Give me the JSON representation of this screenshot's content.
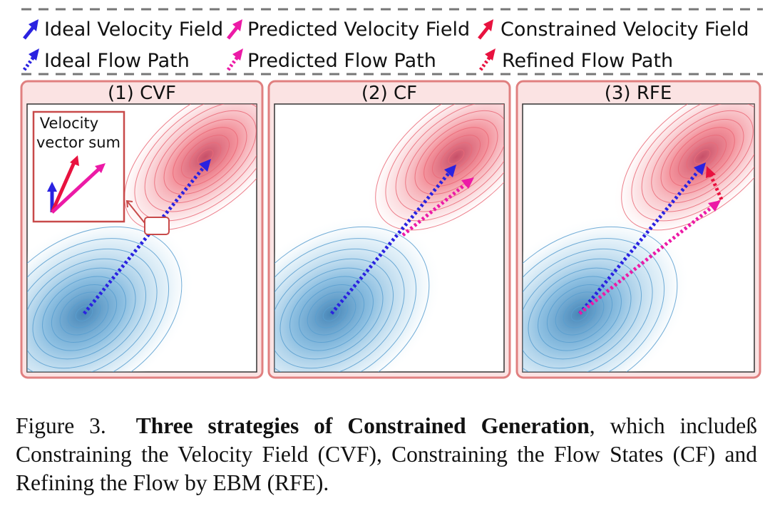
{
  "legend": {
    "row1": [
      "Ideal Velocity Field",
      "Predicted Velocity Field",
      "Constrained Velocity Field"
    ],
    "row2": [
      "Ideal Flow Path",
      "Predicted Flow Path",
      "Refined Flow Path"
    ]
  },
  "panels": [
    {
      "title": "(1) CVF"
    },
    {
      "title": "(2) CF"
    },
    {
      "title": "(3) RFE"
    }
  ],
  "inset": {
    "line1": "Velocity",
    "line2": "vector sum"
  },
  "caption": {
    "label": "Figure 3.",
    "bold": "Three strategies of Constrained Generation",
    "rest": ", which includeß Constraining the Velocity Field (CVF), Constraining the Flow States (CF) and Refining the Flow by EBM (RFE)."
  },
  "colors": {
    "ideal": "#2a22e0",
    "predicted": "#ec1aa6",
    "constrained": "#e8123f",
    "panel_border": "#e08080",
    "panel_fill": "#fbe3e3",
    "blue_gauss": "#4a9ccf",
    "red_gauss": "#ea5a68"
  }
}
